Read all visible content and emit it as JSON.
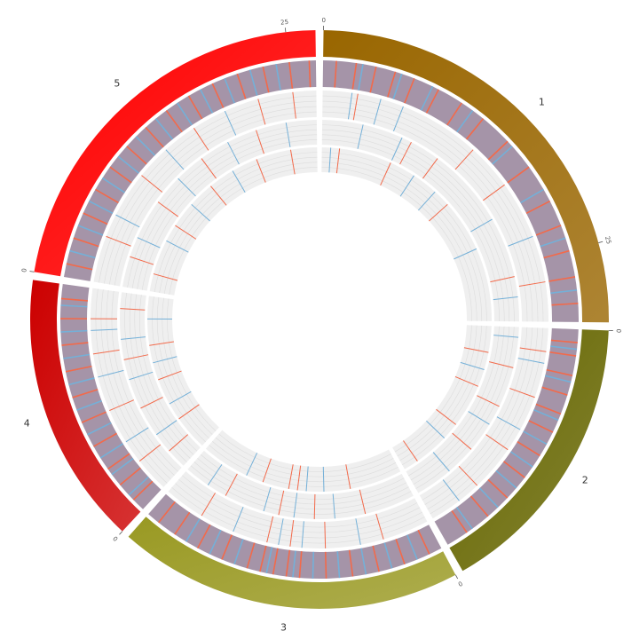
{
  "chart_data": {
    "type": "circos",
    "track_background": "#a594a8",
    "series": [
      {
        "color": "#f26a4b"
      },
      {
        "color": "#74b0d8"
      }
    ],
    "chromosomes": [
      {
        "name": "1",
        "length": 30.4,
        "color": "#996600",
        "ticks": [
          0,
          25
        ],
        "tracks": [
          [
            [
              1,
              2.5,
              4,
              5.5,
              7,
              9,
              11,
              13,
              15.5,
              18,
              21,
              23,
              25,
              27,
              29
            ],
            [
              3,
              6,
              8.5,
              12,
              16,
              20,
              24,
              28
            ]
          ],
          [
            [
              3,
              14,
              18,
              27
            ],
            [
              2.5,
              5,
              7,
              23
            ]
          ],
          [
            [
              9,
              12,
              26
            ],
            [
              4,
              8,
              20,
              28
            ]
          ],
          [
            [
              2,
              8,
              16
            ],
            [
              1,
              11,
              14,
              22
            ]
          ]
        ]
      },
      {
        "name": "2",
        "length": 19.7,
        "color": "#666600",
        "ticks": [
          0
        ],
        "tracks": [
          [
            [
              1,
              2,
              3.5,
              5,
              6.5,
              8,
              10,
              12,
              14,
              16,
              18
            ],
            [
              1.5,
              4,
              7,
              9,
              11,
              13,
              15,
              17.5
            ]
          ],
          [
            [
              2,
              6,
              11,
              15
            ],
            [
              3,
              9,
              17
            ]
          ],
          [
            [
              4,
              8,
              13
            ],
            [
              1,
              10,
              16
            ]
          ],
          [
            [
              3,
              7,
              12,
              18
            ],
            [
              5,
              14
            ]
          ]
        ]
      },
      {
        "name": "3",
        "length": 23.5,
        "color": "#999922",
        "ticks": [
          0
        ],
        "tracks": [
          [
            [
              1,
              3,
              5,
              7,
              9,
              11,
              12,
              13,
              14,
              15,
              17,
              19,
              21,
              22.5
            ],
            [
              2,
              4,
              6,
              8,
              10,
              11.5,
              13.5,
              16,
              18,
              20
            ]
          ],
          [
            [
              4,
              9,
              12,
              14,
              20
            ],
            [
              6,
              11,
              13,
              17
            ]
          ],
          [
            [
              5,
              10,
              13.5,
              19
            ],
            [
              8,
              12,
              15,
              21
            ]
          ],
          [
            [
              6,
              12,
              13,
              16
            ],
            [
              9,
              11,
              18
            ]
          ]
        ]
      },
      {
        "name": "4",
        "length": 18.6,
        "color": "#cc0000",
        "ticks": [
          0
        ],
        "tracks": [
          [
            [
              1,
              2.5,
              4,
              6,
              8,
              10,
              12,
              14,
              16,
              17.5
            ],
            [
              1.5,
              3.5,
              5,
              7,
              9,
              11,
              13,
              15,
              17
            ]
          ],
          [
            [
              3,
              8,
              13,
              16
            ],
            [
              5,
              11,
              15
            ]
          ],
          [
            [
              2,
              7,
              12,
              17
            ],
            [
              4,
              10,
              14
            ]
          ],
          [
            [
              4,
              9,
              13
            ],
            [
              6,
              11,
              16
            ]
          ]
        ]
      },
      {
        "name": "5",
        "length": 27.0,
        "color": "#ff0000",
        "ticks": [
          0,
          25
        ],
        "tracks": [
          [
            [
              1,
              3,
              5,
              7,
              9,
              11,
              13,
              15,
              17,
              19,
              21,
              23,
              25,
              26.5
            ],
            [
              2,
              4,
              6,
              8,
              10,
              12,
              14,
              16,
              18,
              20,
              22,
              24
            ]
          ],
          [
            [
              4,
              10,
              16,
              22,
              25
            ],
            [
              6,
              13,
              19
            ]
          ],
          [
            [
              3,
              9,
              15,
              21
            ],
            [
              5,
              12,
              18,
              24
            ]
          ],
          [
            [
              2,
              8,
              14,
              20,
              24
            ],
            [
              6,
              11,
              17
            ]
          ]
        ]
      }
    ]
  }
}
